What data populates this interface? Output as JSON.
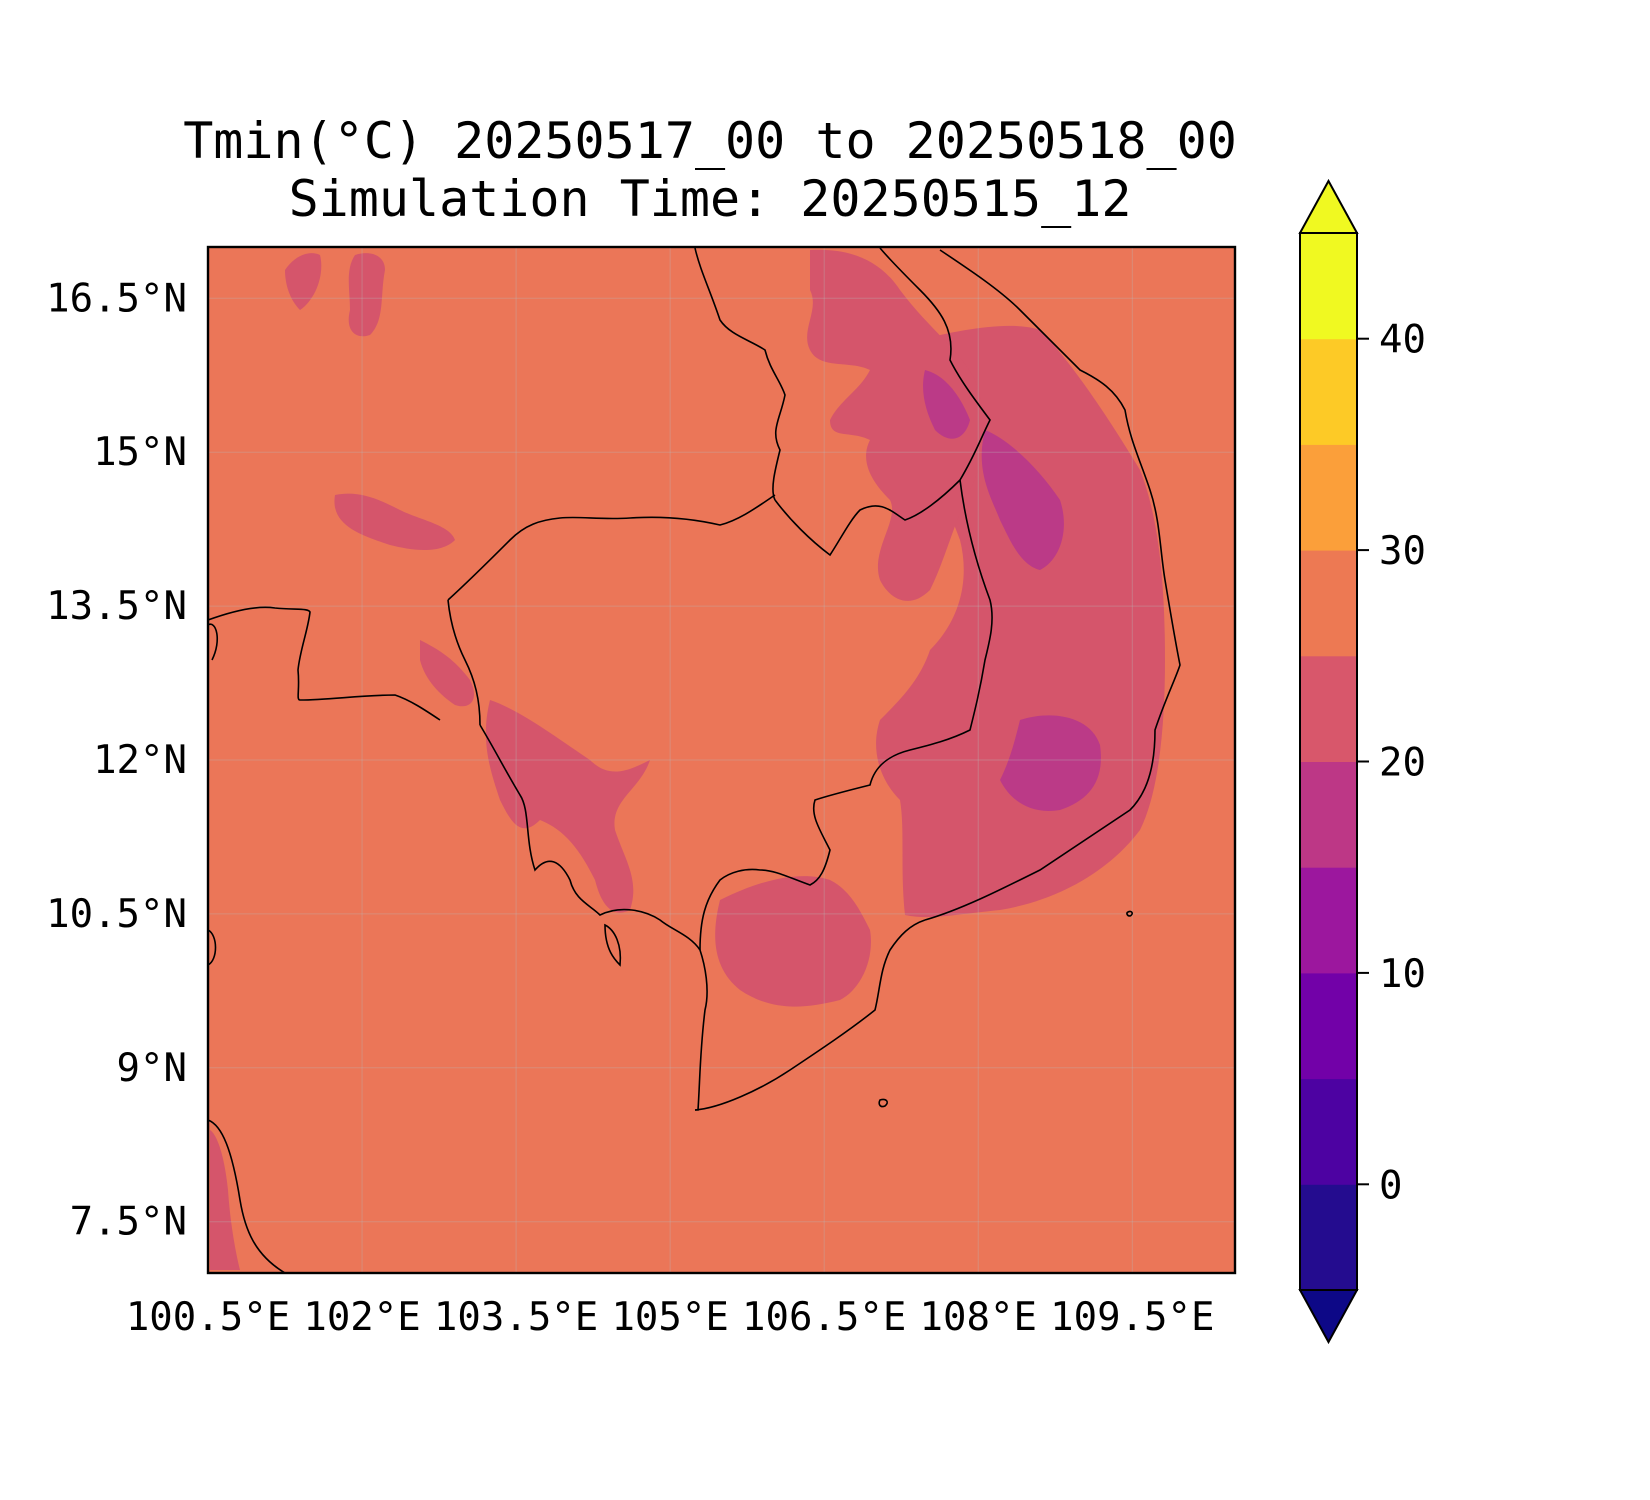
{
  "title": "Tmin(°C) 20250517_00 to 20250518_00",
  "subtitle": "Simulation Time: 20250515_12",
  "map": {
    "lon_range": [
      100.5,
      110.5
    ],
    "lat_range": [
      7.0,
      17.0
    ],
    "lon_ticks": [
      {
        "value": 100.5,
        "label": "100.5°E"
      },
      {
        "value": 102.0,
        "label": "102°E"
      },
      {
        "value": 103.5,
        "label": "103.5°E"
      },
      {
        "value": 105.0,
        "label": "105°E"
      },
      {
        "value": 106.5,
        "label": "106.5°E"
      },
      {
        "value": 108.0,
        "label": "108°E"
      },
      {
        "value": 109.5,
        "label": "109.5°E"
      }
    ],
    "lat_ticks": [
      {
        "value": 16.5,
        "label": "16.5°N"
      },
      {
        "value": 15.0,
        "label": "15°N"
      },
      {
        "value": 13.5,
        "label": "13.5°N"
      },
      {
        "value": 12.0,
        "label": "12°N"
      },
      {
        "value": 10.5,
        "label": "10.5°N"
      },
      {
        "value": 9.0,
        "label": "9°N"
      },
      {
        "value": 7.5,
        "label": "7.5°N"
      }
    ],
    "gridlines": true,
    "background_color": "#eb7658"
  },
  "colorbar": {
    "orientation": "vertical",
    "placement": "right",
    "extend": "both",
    "levels": [
      -5,
      0,
      5,
      10,
      15,
      20,
      25,
      30,
      35,
      40,
      45
    ],
    "colors": [
      "#240c8f",
      "#4d02a2",
      "#7201a8",
      "#9c179e",
      "#bd3786",
      "#d8576b",
      "#ed7953",
      "#fb9f3a",
      "#fdca26",
      "#f0f921"
    ],
    "under_color": "#0d0887",
    "over_color": "#f0f921",
    "ticks": [
      {
        "value": 0,
        "label": "0"
      },
      {
        "value": 10,
        "label": "10"
      },
      {
        "value": 20,
        "label": "20"
      },
      {
        "value": 30,
        "label": "30"
      },
      {
        "value": 40,
        "label": "40"
      }
    ]
  },
  "field_colors": {
    "band_20_25": "#d5556b",
    "band_15_20": "#bb3a87"
  }
}
